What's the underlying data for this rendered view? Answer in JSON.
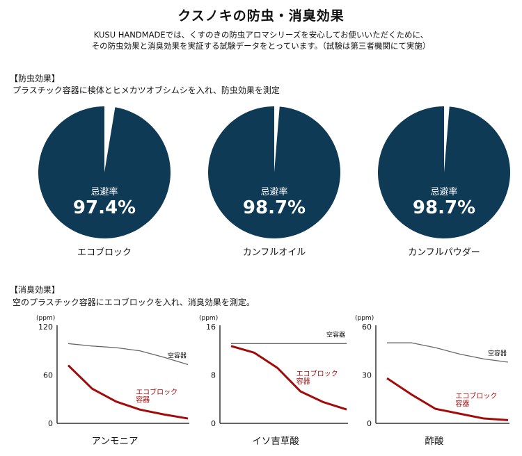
{
  "header": {
    "title": "クスノキの防虫・消臭効果",
    "intro_line1": "KUSU HANDMADEでは、くすのきの防虫アロマシリーズを安心してお使いいただくために、",
    "intro_line2": "その防虫効果と消臭効果を実証する試験データをとっています。（試験は第三者機関にて実施）"
  },
  "insect_section": {
    "label": "【防虫効果】",
    "description": "プラスチック容器に検体とヒメカツオブシムシを入れ、防虫効果を測定"
  },
  "odor_section": {
    "label": "【消臭効果】",
    "description": "空のプラスチック容器にエコブロックを入れ、消臭効果を測定。"
  },
  "colors": {
    "pie_fill": "#0e3a56",
    "empty_line": "#666666",
    "eco_line": "#a30b0b",
    "axis": "#333333"
  },
  "chart_data": [
    {
      "type": "pie",
      "caption": "忌避率",
      "value": 97.4,
      "value_text": "97.4%",
      "name": "エコブロック"
    },
    {
      "type": "pie",
      "caption": "忌避率",
      "value": 98.7,
      "value_text": "98.7%",
      "name": "カンフルオイル"
    },
    {
      "type": "pie",
      "caption": "忌避率",
      "value": 98.7,
      "value_text": "98.7%",
      "name": "カンフルパウダー"
    },
    {
      "type": "line",
      "name": "アンモニア",
      "unit": "(ppm)",
      "ylim": [
        0,
        120
      ],
      "yticks": [
        "120",
        "60",
        "0"
      ],
      "yticks_values": [
        120,
        60,
        0
      ],
      "x": [
        0,
        1,
        2,
        3,
        4,
        5
      ],
      "series": [
        {
          "name": "空容器",
          "values": [
            99,
            96,
            94,
            90,
            82,
            73
          ]
        },
        {
          "name": "エコブロック容器",
          "values": [
            72,
            43,
            27,
            17,
            11,
            6
          ]
        }
      ]
    },
    {
      "type": "line",
      "name": "イソ吉草酸",
      "unit": "(ppm)",
      "ylim": [
        0,
        16
      ],
      "yticks": [
        "16",
        "8",
        "0"
      ],
      "yticks_values": [
        16,
        8,
        0
      ],
      "x": [
        0,
        1,
        2,
        3,
        4,
        5
      ],
      "series": [
        {
          "name": "空容器",
          "values": [
            13.2,
            13.2,
            13.2,
            13.2,
            13.2,
            13.2
          ]
        },
        {
          "name": "エコブロック容器",
          "values": [
            12.8,
            11.7,
            9.2,
            5.3,
            3.5,
            2.3
          ]
        }
      ]
    },
    {
      "type": "line",
      "name": "酢酸",
      "unit": "(ppm)",
      "ylim": [
        0,
        60
      ],
      "yticks": [
        "60",
        "30",
        "0"
      ],
      "yticks_values": [
        60,
        30,
        0
      ],
      "x": [
        0,
        1,
        2,
        3,
        4,
        5
      ],
      "series": [
        {
          "name": "空容器",
          "values": [
            50,
            50,
            47,
            43,
            40,
            38
          ]
        },
        {
          "name": "エコブロック容器",
          "values": [
            28,
            18,
            9,
            6,
            3,
            2
          ]
        }
      ]
    }
  ]
}
